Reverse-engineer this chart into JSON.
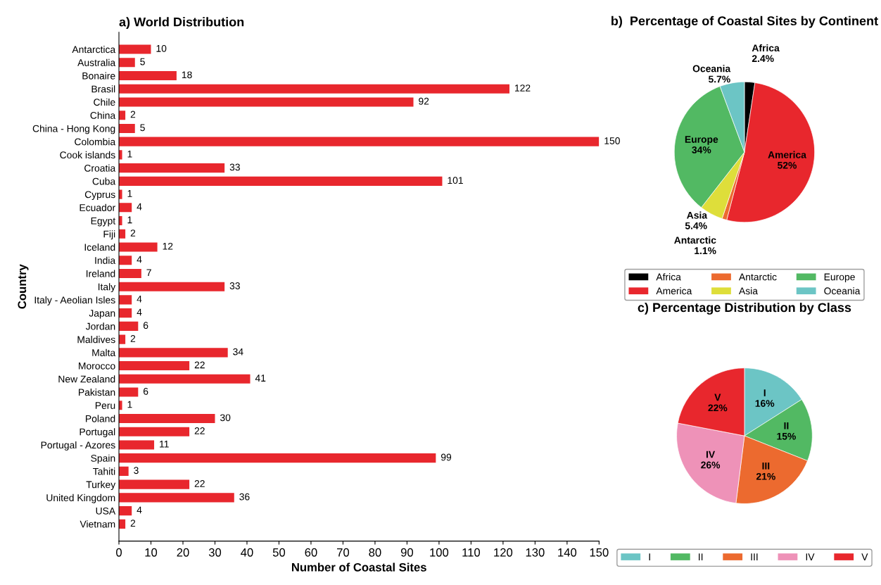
{
  "chart_data": [
    {
      "type": "bar",
      "orientation": "horizontal",
      "title": "a) World Distribution",
      "xlabel": "Number of Coastal Sites",
      "ylabel": "Country",
      "categories": [
        "Antarctica",
        "Australia",
        "Bonaire",
        "Brasil",
        "Chile",
        "China",
        "China - Hong Kong",
        "Colombia",
        "Cook islands",
        "Croatia",
        "Cuba",
        "Cyprus",
        "Ecuador",
        "Egypt",
        "Fiji",
        "Iceland",
        "India",
        "Ireland",
        "Italy",
        "Italy - Aeolian Isles",
        "Japan",
        "Jordan",
        "Maldives",
        "Malta",
        "Morocco",
        "New Zealand",
        "Pakistan",
        "Peru",
        "Poland",
        "Portugal",
        "Portugal - Azores",
        "Spain",
        "Tahiti",
        "Turkey",
        "United Kingdom",
        "USA",
        "Vietnam"
      ],
      "values": [
        10,
        5,
        18,
        122,
        92,
        2,
        5,
        150,
        1,
        33,
        101,
        1,
        4,
        1,
        2,
        12,
        4,
        7,
        33,
        4,
        4,
        6,
        2,
        34,
        22,
        41,
        6,
        1,
        30,
        22,
        11,
        99,
        3,
        22,
        36,
        4,
        2
      ],
      "color": "#e8272d",
      "data_labels": true,
      "xlim": [
        0,
        150
      ],
      "xticks": [
        0,
        10,
        20,
        30,
        40,
        50,
        60,
        70,
        80,
        90,
        100,
        110,
        120,
        130,
        140,
        150
      ],
      "grid": false,
      "legend": false
    },
    {
      "type": "pie",
      "title": "b)  Percentage of Coastal Sites by Continent",
      "categories": [
        "Africa",
        "America",
        "Antarctic",
        "Asia",
        "Europe",
        "Oceania"
      ],
      "values": [
        2.4,
        52,
        1.1,
        5.4,
        34,
        5.7
      ],
      "value_labels": [
        "2.4%",
        "52%",
        "1.1%",
        "5.4%",
        "34%",
        "5.7%"
      ],
      "colors": [
        "#000000",
        "#e8272d",
        "#ec6a2f",
        "#dede3a",
        "#52b963",
        "#6cc5c5"
      ],
      "legend": "bottom"
    },
    {
      "type": "pie",
      "title": "c) Percentage Distribution by Class",
      "categories": [
        "I",
        "II",
        "III",
        "IV",
        "V"
      ],
      "values": [
        16,
        15,
        21,
        26,
        22
      ],
      "value_labels": [
        "16%",
        "15%",
        "21%",
        "26%",
        "22%"
      ],
      "colors": [
        "#6cc5c5",
        "#52b963",
        "#ec6a2f",
        "#ee92b8",
        "#e8272d"
      ],
      "legend": "bottom"
    }
  ]
}
